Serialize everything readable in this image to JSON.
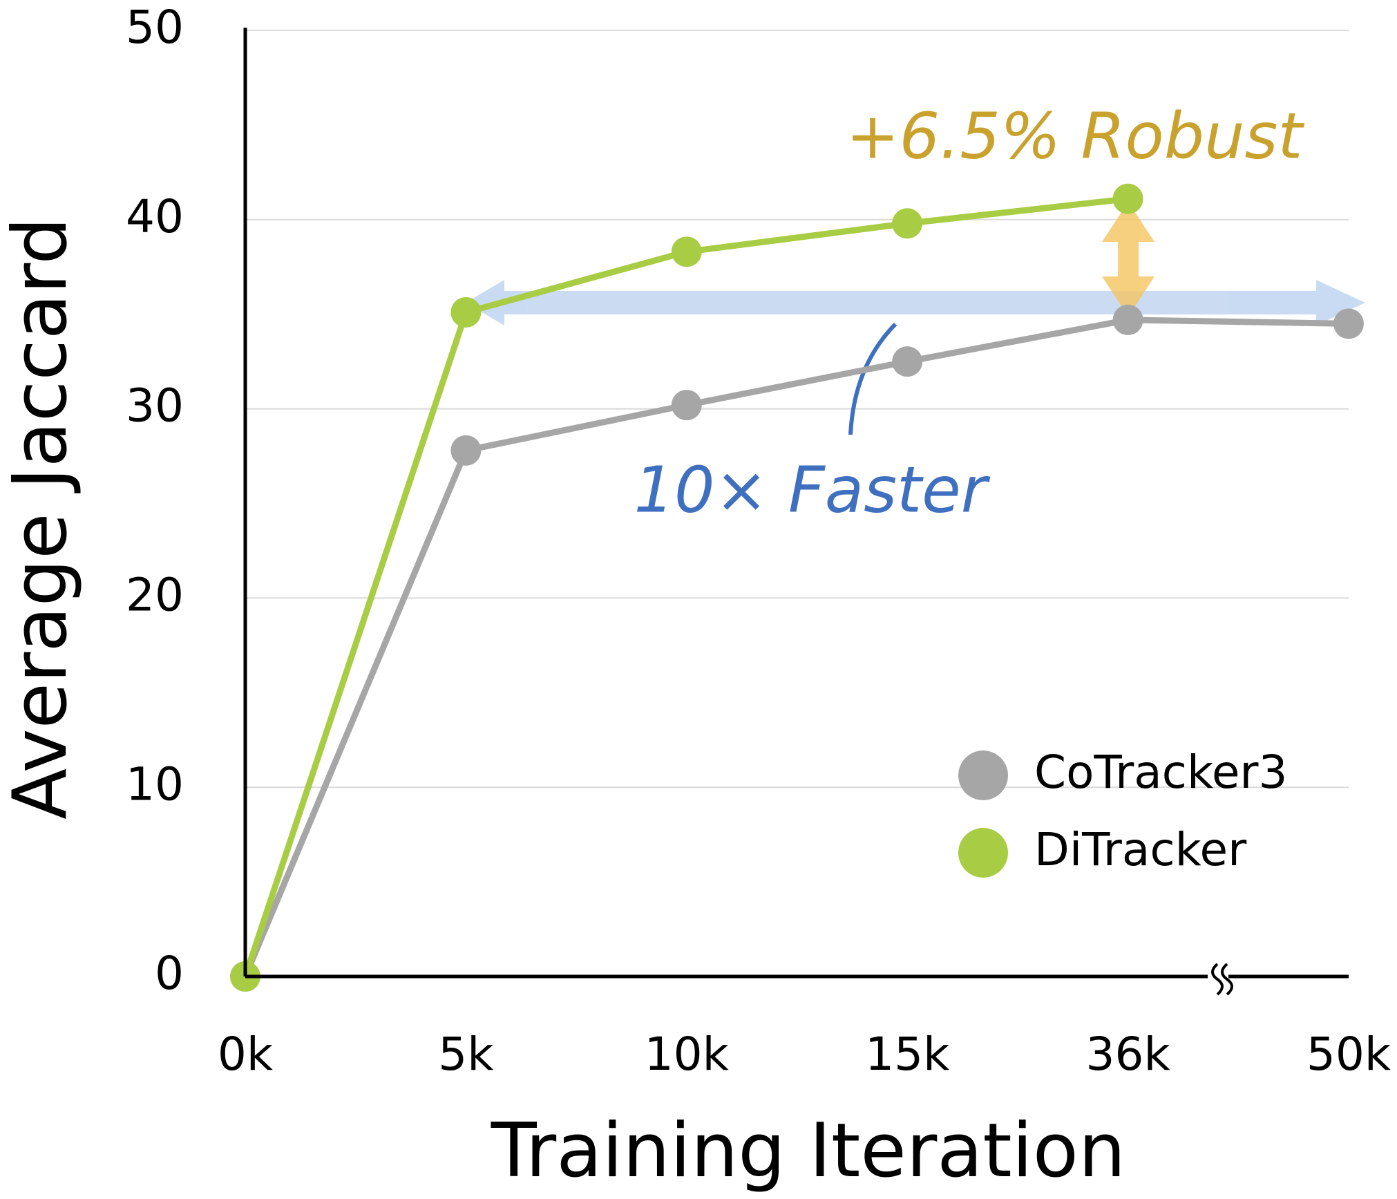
{
  "chart_data": {
    "type": "line",
    "x_label": "Training Iteration",
    "y_label": "Average Jaccard",
    "categories": [
      "0k",
      "5k",
      "10k",
      "15k",
      "36k",
      "50k"
    ],
    "series": [
      {
        "name": "CoTracker3",
        "color": "#a6a6a6",
        "values": [
          0,
          27.8,
          30.2,
          32.5,
          34.7,
          34.5
        ]
      },
      {
        "name": "DiTracker",
        "color": "#a9cc45",
        "values": [
          0,
          35.1,
          38.3,
          39.8,
          41.1,
          null
        ]
      }
    ],
    "ylim": [
      0,
      50
    ],
    "yticks": [
      0,
      10,
      20,
      30,
      40,
      50
    ],
    "grid": true,
    "legend": "lower right",
    "annotations": [
      "+6.5% Robust",
      "10× Faster"
    ]
  }
}
